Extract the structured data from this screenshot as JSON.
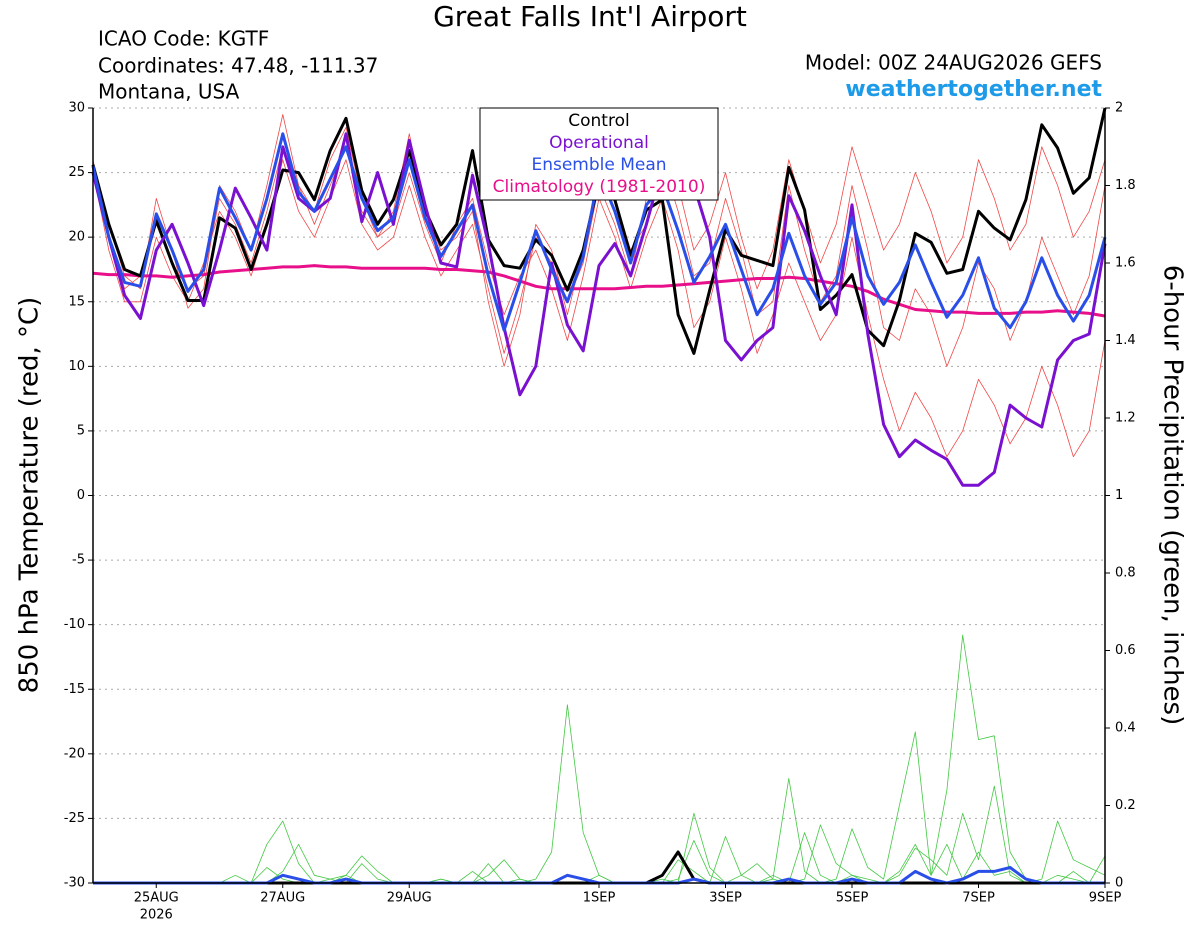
{
  "chart_data": {
    "type": "line",
    "title": "Great Falls Int'l Airport",
    "header_left": [
      "ICAO Code: KGTF",
      "Coordinates: 47.48, -111.37",
      "Montana, USA"
    ],
    "model": "Model: 00Z 24AUG2026 GEFS",
    "website": "weathertogether.net",
    "ylabel": "850 hPa Temperature (red, °C)",
    "y2label": "6-hour Precipitation (green, inches)",
    "x": [
      0,
      0.25,
      0.5,
      0.75,
      1,
      1.25,
      1.5,
      1.75,
      2,
      2.25,
      2.5,
      2.75,
      3,
      3.25,
      3.5,
      3.75,
      4,
      4.25,
      4.5,
      4.75,
      5,
      5.25,
      5.5,
      5.75,
      6,
      6.25,
      6.5,
      6.75,
      7,
      7.25,
      7.5,
      7.75,
      8,
      8.25,
      8.5,
      8.75,
      9,
      9.25,
      9.5,
      9.75,
      10,
      10.25,
      10.5,
      10.75,
      11,
      11.25,
      11.5,
      11.75,
      12,
      12.25,
      12.5,
      12.75,
      13,
      13.25,
      13.5,
      13.75,
      14,
      14.25,
      14.5,
      14.75,
      15,
      15.25,
      15.5,
      15.75,
      16
    ],
    "xlim": [
      0,
      16
    ],
    "xticks": [
      {
        "value": 1,
        "label": "25AUG"
      },
      {
        "value": 3,
        "label": "27AUG"
      },
      {
        "value": 5,
        "label": "29AUG"
      },
      {
        "value": 8,
        "label": "1SEP"
      },
      {
        "value": 10,
        "label": "3SEP"
      },
      {
        "value": 12,
        "label": "5SEP"
      },
      {
        "value": 14,
        "label": "7SEP"
      },
      {
        "value": 16,
        "label": "9SEP"
      }
    ],
    "x_sublabel": "2026",
    "ylim": [
      -30,
      30
    ],
    "yticks": [
      -30,
      -25,
      -20,
      -15,
      -10,
      -5,
      0,
      5,
      10,
      15,
      20,
      25,
      30
    ],
    "y2lim": [
      0,
      2
    ],
    "y2ticks": [
      0,
      0.2,
      0.4,
      0.6,
      0.8,
      1,
      1.2,
      1.4,
      1.6,
      1.8,
      2
    ],
    "grid": true,
    "legend": "top-center",
    "series": [
      {
        "color": "#f04848",
        "style": "thin",
        "values": [
          25,
          21,
          17,
          16,
          23,
          19,
          14.5,
          16,
          24,
          22,
          19,
          24,
          29.5,
          24,
          22,
          26,
          28.5,
          23,
          20,
          22,
          28,
          22,
          19,
          20,
          22,
          15,
          10,
          14,
          21,
          19,
          14,
          19,
          25,
          23,
          19,
          21,
          26,
          22,
          17,
          18,
          23,
          19,
          14,
          15,
          24,
          19,
          15,
          17,
          24,
          19,
          13,
          12,
          16,
          14,
          10,
          13,
          18,
          16,
          12,
          15,
          20,
          17,
          14,
          17,
          24
        ]
      },
      {
        "color": "#f04848",
        "style": "thin",
        "values": [
          26,
          20,
          16,
          17,
          21,
          18,
          16,
          17,
          23,
          21,
          18,
          22,
          27,
          24,
          21,
          24,
          27,
          22,
          20,
          21,
          25,
          21,
          18,
          21,
          23,
          18,
          14,
          17,
          19,
          16,
          12,
          17,
          23,
          20,
          16,
          20,
          23,
          19,
          13,
          15,
          20,
          16,
          11,
          14,
          18,
          15,
          12,
          14,
          20,
          14,
          9,
          5,
          8,
          6,
          3,
          5,
          9,
          7,
          4,
          6,
          10,
          7,
          3,
          5,
          12
        ]
      },
      {
        "color": "#f04848",
        "style": "thin",
        "values": [
          25,
          19,
          15,
          15,
          20,
          17,
          15,
          18,
          22,
          20,
          17,
          21,
          26,
          22,
          20,
          23,
          26,
          21,
          19,
          20,
          24,
          20,
          17,
          19,
          21,
          16,
          11,
          15,
          20,
          18,
          15,
          18,
          24,
          21,
          17,
          23,
          28,
          24,
          19,
          21,
          25,
          20,
          16,
          19,
          26,
          22,
          18,
          21,
          27,
          23,
          19,
          21,
          25,
          22,
          18,
          20,
          26,
          23,
          19,
          21,
          27,
          24,
          20,
          22,
          26
        ]
      },
      {
        "color": "#44c844",
        "style": "thin",
        "axis": "y2",
        "values": [
          0,
          0,
          0,
          0,
          0,
          0,
          0,
          0,
          0,
          0.02,
          0,
          0.1,
          0.16,
          0.05,
          0,
          0,
          0.02,
          0,
          0,
          0,
          0,
          0,
          0.01,
          0,
          0.03,
          0,
          0,
          0,
          0.01,
          0.08,
          0.46,
          0.13,
          0.02,
          0,
          0,
          0,
          0.01,
          0,
          0.18,
          0.04,
          0,
          0.02,
          0.05,
          0.01,
          0.27,
          0.03,
          0,
          0.01,
          0.14,
          0.04,
          0.01,
          0.2,
          0.39,
          0.02,
          0.1,
          0.01,
          0.08,
          0.02,
          0.03,
          0,
          0.01,
          0.16,
          0.06,
          0.04,
          0.02
        ]
      },
      {
        "color": "#44c844",
        "style": "thin",
        "axis": "y2",
        "values": [
          0,
          0,
          0,
          0,
          0,
          0,
          0,
          0,
          0,
          0,
          0,
          0,
          0.03,
          0.1,
          0.02,
          0.01,
          0,
          0.05,
          0.01,
          0,
          0,
          0,
          0,
          0,
          0,
          0.02,
          0.06,
          0.01,
          0,
          0,
          0,
          0,
          0,
          0,
          0,
          0,
          0,
          0.06,
          0.03,
          0,
          0.12,
          0.02,
          0,
          0.02,
          0,
          0.01,
          0.15,
          0.05,
          0.02,
          0.01,
          0,
          0.03,
          0.1,
          0.02,
          0.24,
          0.64,
          0.37,
          0.38,
          0.08,
          0.01,
          0,
          0.02,
          0.01,
          0,
          0.07
        ]
      },
      {
        "color": "#44c844",
        "style": "thin",
        "axis": "y2",
        "values": [
          0,
          0,
          0,
          0,
          0,
          0,
          0,
          0,
          0,
          0,
          0,
          0.04,
          0.01,
          0,
          0,
          0.01,
          0.02,
          0.07,
          0.03,
          0,
          0,
          0,
          0.01,
          0,
          0,
          0.05,
          0,
          0.01,
          0,
          0,
          0,
          0,
          0.02,
          0,
          0,
          0,
          0,
          0.01,
          0.11,
          0.02,
          0,
          0,
          0,
          0.01,
          0,
          0.13,
          0.02,
          0,
          0.02,
          0,
          0,
          0.02,
          0.09,
          0.06,
          0.02,
          0.18,
          0.06,
          0.25,
          0.02,
          0,
          0,
          0,
          0.03,
          0,
          0
        ]
      },
      {
        "name": "Climatology (1981-2010)",
        "color": "#e8108a",
        "style": "thick",
        "values": [
          17.2,
          17.1,
          17.1,
          17,
          17,
          16.9,
          17,
          17.1,
          17.3,
          17.4,
          17.5,
          17.6,
          17.7,
          17.7,
          17.8,
          17.7,
          17.7,
          17.6,
          17.6,
          17.6,
          17.6,
          17.6,
          17.5,
          17.5,
          17.4,
          17.3,
          17,
          16.6,
          16.2,
          16,
          16,
          16,
          16,
          16,
          16.1,
          16.2,
          16.2,
          16.3,
          16.4,
          16.5,
          16.6,
          16.7,
          16.8,
          16.8,
          16.9,
          16.8,
          16.6,
          16.4,
          16.2,
          15.8,
          15.2,
          14.8,
          14.4,
          14.3,
          14.2,
          14.2,
          14.1,
          14.1,
          14.1,
          14.2,
          14.2,
          14.3,
          14.2,
          14.1,
          13.9
        ]
      },
      {
        "color": "#000000",
        "style": "thick",
        "axis": "y2",
        "values": [
          0,
          0,
          0,
          0,
          0,
          0,
          0,
          0,
          0,
          0,
          0,
          0,
          0,
          0,
          0,
          0,
          0,
          0,
          0,
          0,
          0,
          0,
          0,
          0,
          0,
          0,
          0,
          0,
          0,
          0,
          0,
          0,
          0,
          0,
          0,
          0,
          0.02,
          0.08,
          0.01,
          0,
          0,
          0,
          0,
          0,
          0,
          0,
          0,
          0,
          0,
          0,
          0,
          0,
          0,
          0,
          0,
          0,
          0,
          0,
          0,
          0,
          0,
          0,
          0,
          0,
          0
        ]
      },
      {
        "color": "#2a4fe8",
        "style": "thick",
        "axis": "y2",
        "values": [
          0,
          0,
          0,
          0,
          0,
          0,
          0,
          0,
          0,
          0,
          0,
          0,
          0.02,
          0.01,
          0,
          0,
          0.01,
          0,
          0,
          0,
          0,
          0,
          0,
          0,
          0,
          0,
          0,
          0,
          0,
          0,
          0.02,
          0.01,
          0,
          0,
          0,
          0,
          0,
          0,
          0.01,
          0,
          0,
          0,
          0,
          0,
          0.01,
          0,
          0,
          0,
          0.01,
          0,
          0,
          0,
          0.03,
          0.01,
          0,
          0.01,
          0.03,
          0.03,
          0.04,
          0.01,
          0,
          0,
          0,
          0,
          0
        ]
      },
      {
        "name": "Control",
        "color": "#000000",
        "style": "thick",
        "values": [
          25.6,
          21,
          17.5,
          17,
          21.3,
          18,
          15.1,
          15.1,
          21.5,
          20.7,
          17.5,
          21,
          25.2,
          25,
          22.9,
          26.7,
          29.2,
          23.6,
          21,
          22.9,
          26.7,
          22.1,
          19.4,
          21,
          26.7,
          19.8,
          17.8,
          17.6,
          19.8,
          18.6,
          15.9,
          19,
          24.4,
          22.9,
          18.6,
          22.1,
          22.9,
          14,
          11,
          15.9,
          20.6,
          18.6,
          18.2,
          17.8,
          25.4,
          22.1,
          14.4,
          15.5,
          17.1,
          12.8,
          11.6,
          15.1,
          20.3,
          19.6,
          17.2,
          17.5,
          22,
          20.7,
          19.8,
          22.9,
          28.7,
          26.9,
          23.4,
          24.6,
          30
        ]
      },
      {
        "name": "Operational",
        "color": "#7a10d0",
        "style": "thick",
        "values": [
          25,
          20,
          15.5,
          13.7,
          19,
          21,
          18,
          14.7,
          19,
          23.8,
          21.5,
          19,
          27,
          23,
          22,
          23,
          28,
          21.2,
          25,
          21,
          27.5,
          22.5,
          18,
          17.7,
          24.8,
          19.5,
          13,
          7.8,
          10,
          18,
          13.2,
          11.2,
          17.8,
          19.5,
          17,
          21,
          25.5,
          25,
          24,
          20,
          12,
          10.5,
          12,
          13,
          23.2,
          20.5,
          17,
          14,
          22.5,
          12.5,
          5.5,
          3,
          4.3,
          3.5,
          2.8,
          0.8,
          0.8,
          1.8,
          7,
          6,
          5.3,
          10.5,
          12,
          12.5,
          19.5
        ]
      },
      {
        "name": "Ensemble Mean",
        "color": "#2a4fe8",
        "style": "thick",
        "values": [
          25.5,
          20,
          16.5,
          16.2,
          21.8,
          19,
          15.8,
          17.5,
          23.8,
          21.5,
          19,
          23,
          28,
          23.5,
          22,
          24.5,
          27,
          23,
          20.5,
          21.5,
          26,
          21.5,
          18.5,
          20.5,
          22.5,
          17,
          12.8,
          16.5,
          20.5,
          17.5,
          15,
          18.5,
          25,
          22,
          18,
          22.5,
          24,
          20.5,
          16.5,
          18.5,
          21,
          17.5,
          14,
          16,
          20.3,
          17,
          14.8,
          16.5,
          21.5,
          17,
          14.8,
          16.5,
          19.4,
          16.5,
          13.8,
          15.5,
          18.4,
          14.5,
          13,
          15,
          18.4,
          15.5,
          13.5,
          15.5,
          20
        ]
      }
    ]
  }
}
